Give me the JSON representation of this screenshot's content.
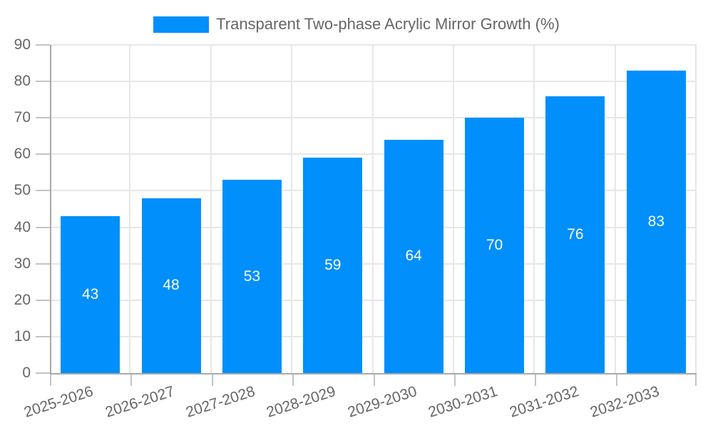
{
  "legend": {
    "label": "Transparent Two-phase Acrylic Mirror Growth (%)",
    "swatch_color": "#008FFB"
  },
  "chart_data": {
    "type": "bar",
    "title": "Transparent Two-phase Acrylic Mirror Growth (%)",
    "series_name": "Transparent Two-phase Acrylic Mirror Growth (%)",
    "categories": [
      "2025-2026",
      "2026-2027",
      "2027-2028",
      "2028-2029",
      "2029-2030",
      "2030-2031",
      "2031-2032",
      "2032-2033"
    ],
    "values": [
      43,
      48,
      53,
      59,
      64,
      70,
      76,
      83
    ],
    "xlabel": "",
    "ylabel": "",
    "ylim": [
      0,
      90
    ],
    "y_tick_step": 10,
    "y_ticks": [
      "0",
      "10",
      "20",
      "30",
      "40",
      "50",
      "60",
      "70",
      "80",
      "90"
    ],
    "grid": true,
    "legend_position": "top",
    "bar_color": "#008FFB",
    "value_label_color": "#ffffff",
    "value_label_position": "inside-middle",
    "x_label_rotation_deg": -18
  }
}
